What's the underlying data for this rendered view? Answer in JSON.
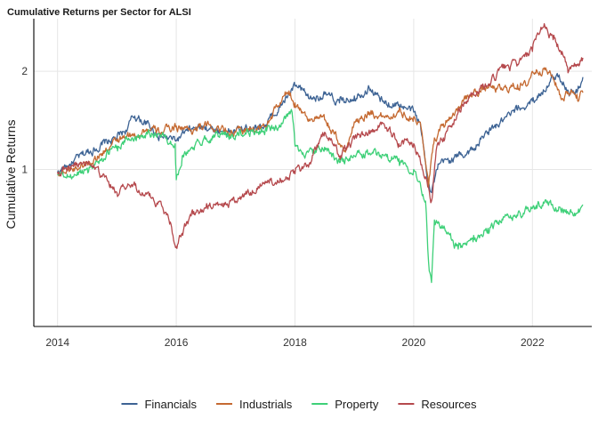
{
  "chart_data": {
    "type": "line",
    "title": "Cumulative Returns per Sector for ALSI",
    "xlabel": "",
    "ylabel": "Cumulative Returns",
    "x_ticks": [
      "2014",
      "2016",
      "2018",
      "2020",
      "2022"
    ],
    "y_ticks": [
      "1",
      "2"
    ],
    "xlim": [
      2013.6,
      2023.0
    ],
    "ylim": [
      0.33,
      2.9
    ],
    "y_scale": "log",
    "grid": true,
    "legend_position": "bottom",
    "series": [
      {
        "name": "Financials",
        "color": "#3d6394",
        "x": [
          2014.0,
          2014.25,
          2014.5,
          2014.75,
          2015.0,
          2015.15,
          2015.3,
          2015.5,
          2015.75,
          2016.0,
          2016.2,
          2016.5,
          2016.75,
          2017.0,
          2017.25,
          2017.5,
          2017.75,
          2018.0,
          2018.1,
          2018.25,
          2018.5,
          2018.75,
          2019.0,
          2019.25,
          2019.5,
          2019.75,
          2020.0,
          2020.1,
          2020.2,
          2020.25,
          2020.3,
          2020.4,
          2020.5,
          2020.75,
          2021.0,
          2021.25,
          2021.5,
          2021.75,
          2022.0,
          2022.15,
          2022.3,
          2022.45,
          2022.6,
          2022.75,
          2022.85
        ],
        "y": [
          0.98,
          1.05,
          1.13,
          1.19,
          1.25,
          1.32,
          1.46,
          1.38,
          1.26,
          1.23,
          1.31,
          1.36,
          1.31,
          1.31,
          1.35,
          1.37,
          1.55,
          1.8,
          1.75,
          1.65,
          1.7,
          1.6,
          1.68,
          1.78,
          1.6,
          1.58,
          1.5,
          1.4,
          1.05,
          0.92,
          0.85,
          1.0,
          1.05,
          1.1,
          1.15,
          1.3,
          1.4,
          1.52,
          1.62,
          1.72,
          1.86,
          1.95,
          1.75,
          1.72,
          1.92
        ]
      },
      {
        "name": "Industrials",
        "color": "#c56a32",
        "x": [
          2014.0,
          2014.25,
          2014.5,
          2014.75,
          2015.0,
          2015.25,
          2015.5,
          2015.75,
          2016.0,
          2016.25,
          2016.5,
          2016.75,
          2017.0,
          2017.25,
          2017.5,
          2017.75,
          2017.9,
          2018.0,
          2018.2,
          2018.5,
          2018.75,
          2018.85,
          2019.0,
          2019.25,
          2019.5,
          2019.75,
          2020.0,
          2020.1,
          2020.2,
          2020.25,
          2020.35,
          2020.5,
          2020.75,
          2021.0,
          2021.25,
          2021.5,
          2021.75,
          2021.9,
          2022.0,
          2022.2,
          2022.35,
          2022.5,
          2022.65,
          2022.75,
          2022.85
        ],
        "y": [
          0.98,
          1.0,
          1.05,
          1.12,
          1.22,
          1.27,
          1.33,
          1.3,
          1.36,
          1.32,
          1.37,
          1.33,
          1.3,
          1.33,
          1.35,
          1.6,
          1.74,
          1.6,
          1.45,
          1.42,
          1.2,
          1.13,
          1.4,
          1.5,
          1.45,
          1.5,
          1.45,
          1.4,
          1.05,
          0.88,
          1.25,
          1.38,
          1.55,
          1.72,
          1.78,
          1.75,
          1.82,
          1.8,
          2.0,
          2.05,
          1.9,
          1.65,
          1.75,
          1.7,
          1.72
        ]
      },
      {
        "name": "Property",
        "color": "#3ed078",
        "x": [
          2014.0,
          2014.25,
          2014.5,
          2014.75,
          2015.0,
          2015.25,
          2015.5,
          2015.75,
          2015.98,
          2016.0,
          2016.1,
          2016.5,
          2016.75,
          2017.0,
          2017.25,
          2017.5,
          2017.75,
          2017.95,
          2018.0,
          2018.1,
          2018.3,
          2018.5,
          2018.75,
          2019.0,
          2019.25,
          2019.5,
          2019.75,
          2020.0,
          2020.1,
          2020.2,
          2020.25,
          2020.3,
          2020.35,
          2020.5,
          2020.75,
          2021.0,
          2021.25,
          2021.5,
          2021.75,
          2022.0,
          2022.25,
          2022.5,
          2022.7,
          2022.8,
          2022.85
        ],
        "y": [
          0.96,
          0.95,
          1.01,
          1.08,
          1.18,
          1.25,
          1.3,
          1.27,
          1.2,
          0.93,
          1.1,
          1.25,
          1.28,
          1.27,
          1.31,
          1.32,
          1.35,
          1.5,
          1.18,
          1.14,
          1.12,
          1.17,
          1.05,
          1.1,
          1.12,
          1.1,
          1.08,
          1.0,
          0.92,
          0.8,
          0.52,
          0.45,
          0.7,
          0.66,
          0.57,
          0.6,
          0.66,
          0.7,
          0.72,
          0.76,
          0.8,
          0.76,
          0.72,
          0.75,
          0.78
        ]
      },
      {
        "name": "Resources",
        "color": "#b5494d",
        "x": [
          2014.0,
          2014.25,
          2014.5,
          2014.75,
          2015.0,
          2015.25,
          2015.5,
          2015.75,
          2015.9,
          2016.0,
          2016.25,
          2016.5,
          2016.75,
          2017.0,
          2017.25,
          2017.5,
          2017.75,
          2018.0,
          2018.25,
          2018.5,
          2018.75,
          2019.0,
          2019.25,
          2019.5,
          2019.75,
          2020.0,
          2020.1,
          2020.2,
          2020.25,
          2020.3,
          2020.4,
          2020.5,
          2020.75,
          2021.0,
          2021.25,
          2021.5,
          2021.75,
          2022.0,
          2022.1,
          2022.2,
          2022.35,
          2022.5,
          2022.6,
          2022.75,
          2022.85
        ],
        "y": [
          0.98,
          1.03,
          1.05,
          0.95,
          0.85,
          0.9,
          0.84,
          0.78,
          0.69,
          0.58,
          0.72,
          0.76,
          0.78,
          0.8,
          0.85,
          0.92,
          0.94,
          0.97,
          1.05,
          1.3,
          1.1,
          1.24,
          1.32,
          1.38,
          1.2,
          1.2,
          1.1,
          0.95,
          0.88,
          0.8,
          1.2,
          1.25,
          1.5,
          1.72,
          1.8,
          2.05,
          2.1,
          2.3,
          2.6,
          2.8,
          2.5,
          2.3,
          1.98,
          2.1,
          2.2
        ]
      }
    ]
  }
}
